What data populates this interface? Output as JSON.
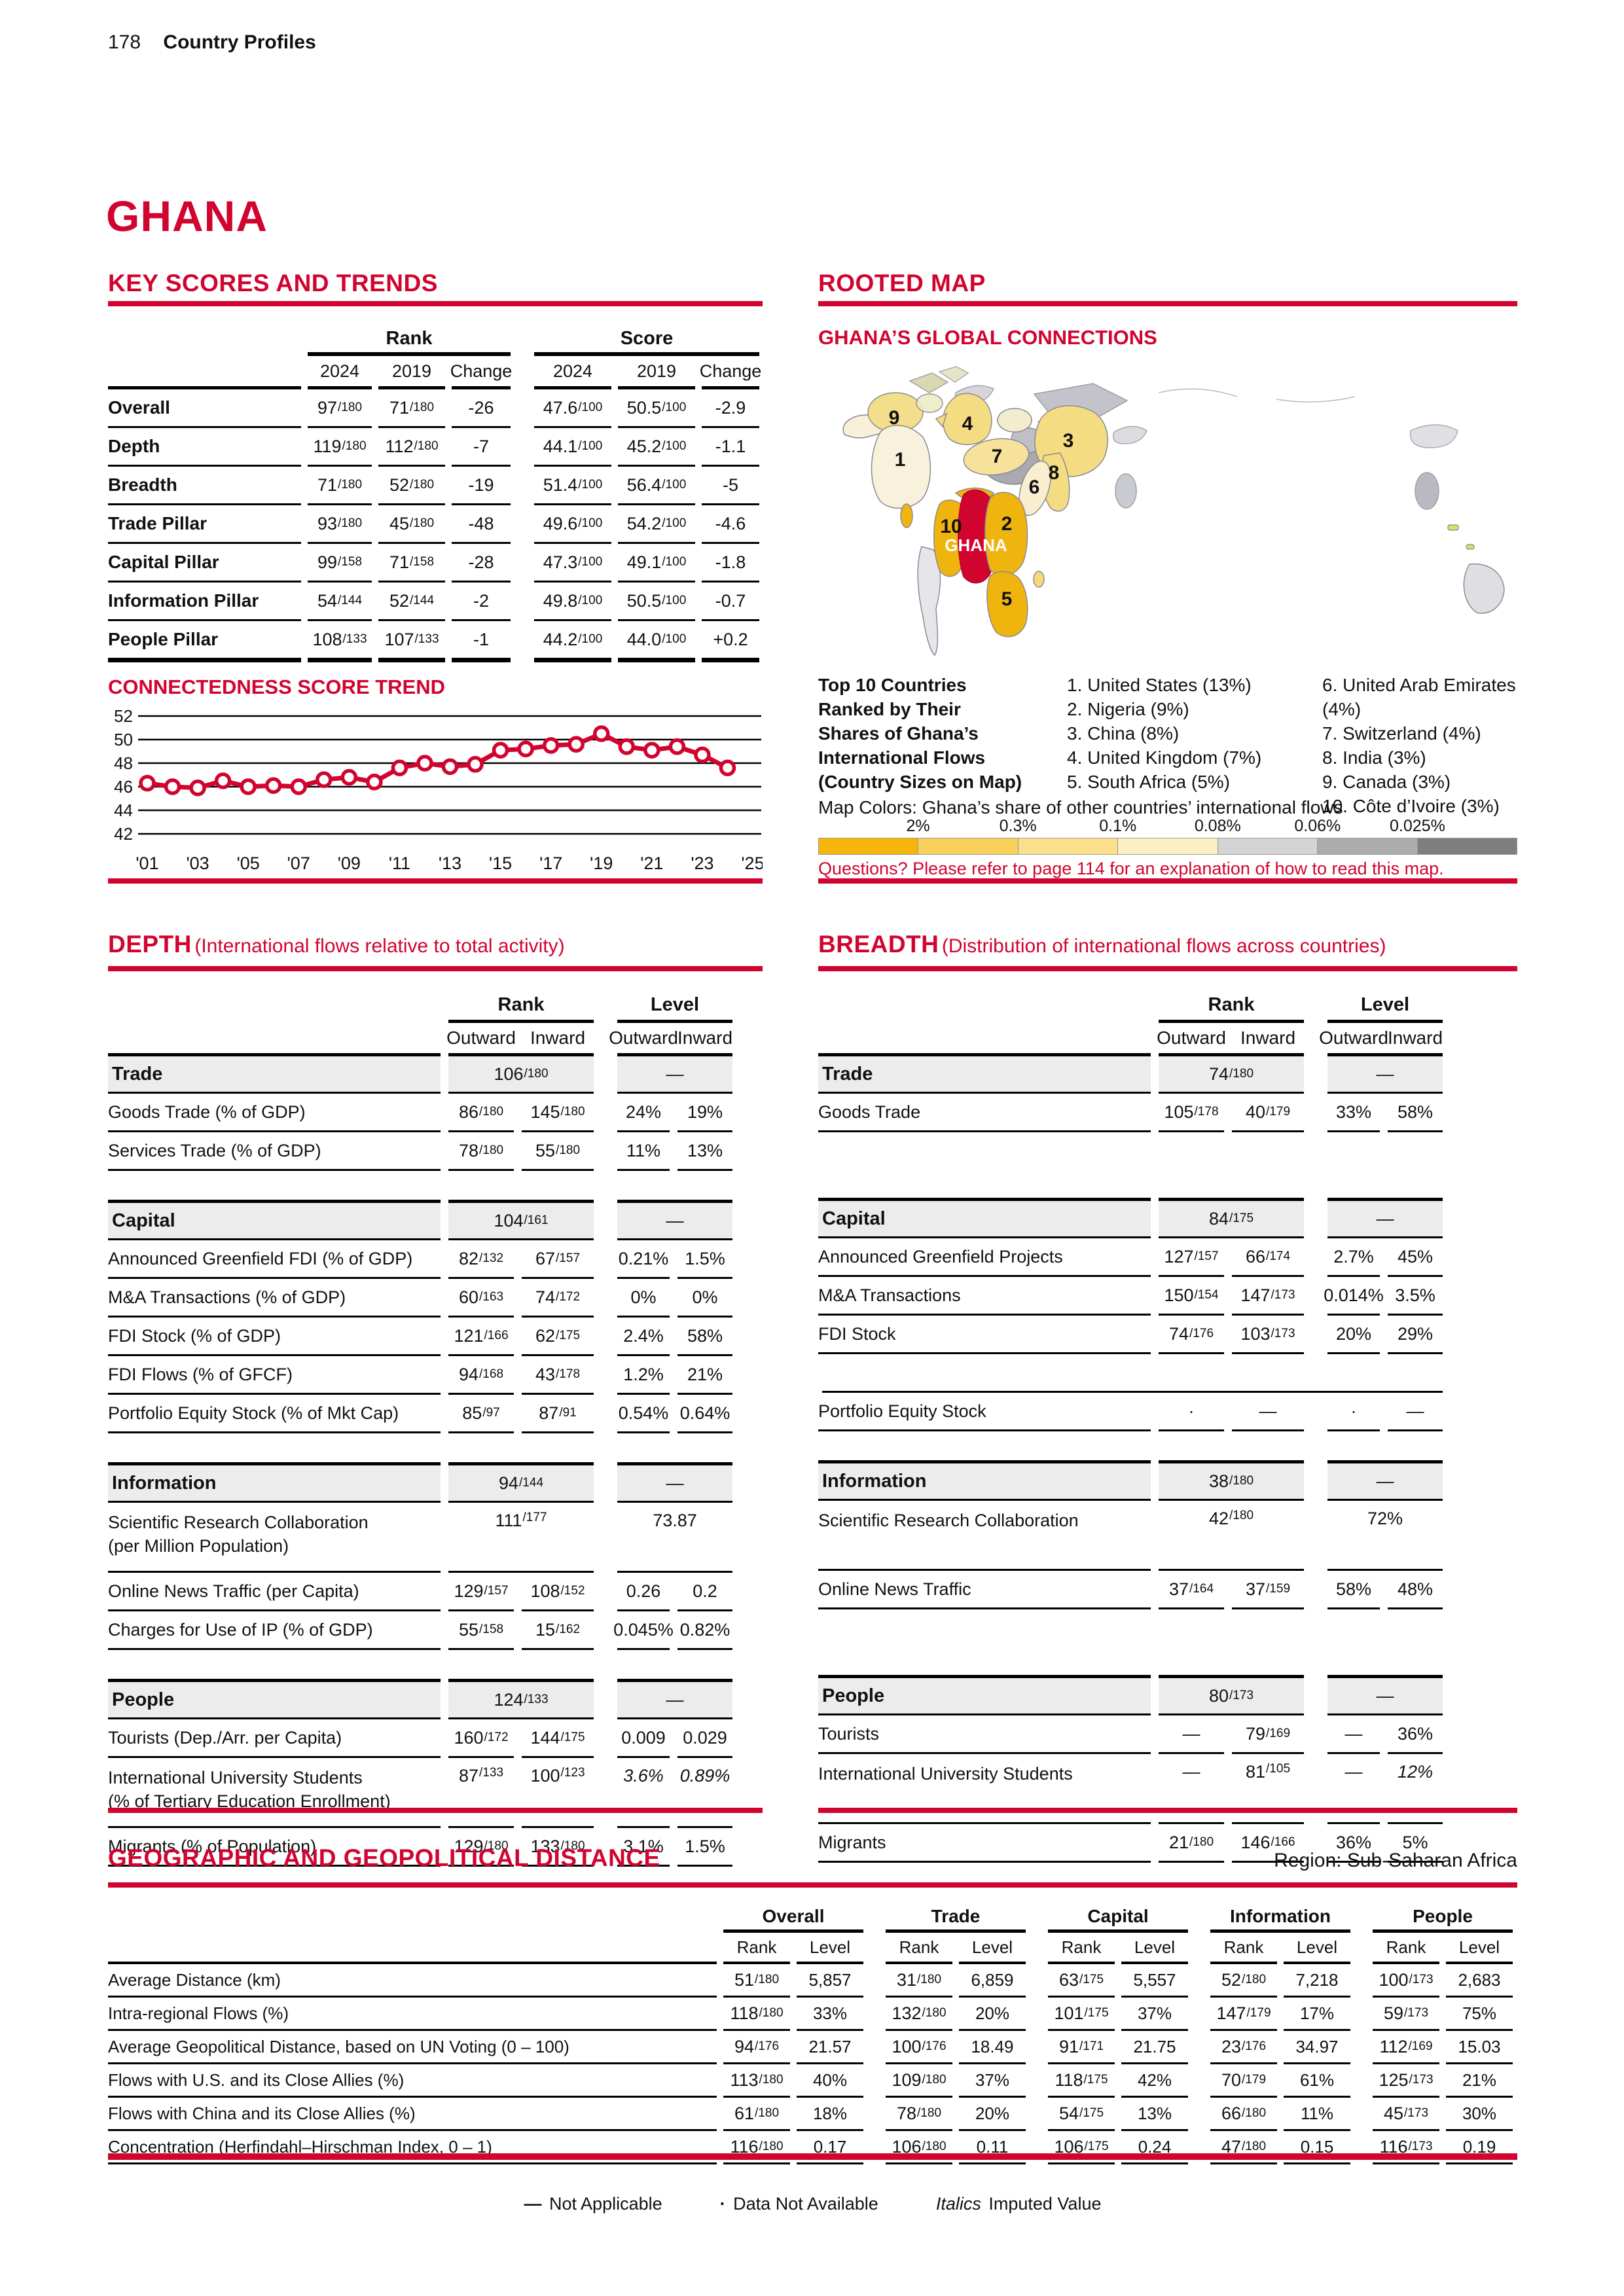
{
  "page": {
    "number": "178",
    "section": "Country Profiles",
    "country": "GHANA"
  },
  "colors": {
    "accent_red": "#D1042F",
    "gold": "#F0B40E",
    "pale_yellow": "#F4DC82",
    "cream": "#F8F0D8",
    "light_gray": "#D8D8DC",
    "medium_gray": "#ACACB4",
    "group_row_bg": "#ECECEC"
  },
  "key_scores": {
    "title": "KEY SCORES AND TRENDS",
    "col_groups": [
      "Rank",
      "Score"
    ],
    "col_headers": [
      "2024",
      "2019",
      "Change"
    ],
    "rows": [
      {
        "label": "Overall",
        "rank_2024": "97/180",
        "rank_2019": "71/180",
        "rank_change": "-26",
        "score_2024": "47.6/100",
        "score_2019": "50.5/100",
        "score_change": "-2.9"
      },
      {
        "label": "Depth",
        "rank_2024": "119/180",
        "rank_2019": "112/180",
        "rank_change": "-7",
        "score_2024": "44.1/100",
        "score_2019": "45.2/100",
        "score_change": "-1.1"
      },
      {
        "label": "Breadth",
        "rank_2024": "71/180",
        "rank_2019": "52/180",
        "rank_change": "-19",
        "score_2024": "51.4/100",
        "score_2019": "56.4/100",
        "score_change": "-5"
      },
      {
        "label": "Trade Pillar",
        "rank_2024": "93/180",
        "rank_2019": "45/180",
        "rank_change": "-48",
        "score_2024": "49.6/100",
        "score_2019": "54.2/100",
        "score_change": "-4.6"
      },
      {
        "label": "Capital Pillar",
        "rank_2024": "99/158",
        "rank_2019": "71/158",
        "rank_change": "-28",
        "score_2024": "47.3/100",
        "score_2019": "49.1/100",
        "score_change": "-1.8"
      },
      {
        "label": "Information Pillar",
        "rank_2024": "54/144",
        "rank_2019": "52/144",
        "rank_change": "-2",
        "score_2024": "49.8/100",
        "score_2019": "50.5/100",
        "score_change": "-0.7"
      },
      {
        "label": "People Pillar",
        "rank_2024": "108/133",
        "rank_2019": "107/133",
        "rank_change": "-1",
        "score_2024": "44.2/100",
        "score_2019": "44.0/100",
        "score_change": "+0.2"
      }
    ]
  },
  "chart_data": {
    "type": "line",
    "title": "CONNECTEDNESS SCORE TREND",
    "x": [
      2001,
      2002,
      2003,
      2004,
      2005,
      2006,
      2007,
      2008,
      2009,
      2010,
      2011,
      2012,
      2013,
      2014,
      2015,
      2016,
      2017,
      2018,
      2019,
      2020,
      2021,
      2022,
      2023,
      2024
    ],
    "values": [
      46.3,
      46.0,
      45.9,
      46.5,
      46.0,
      46.1,
      46.0,
      46.6,
      46.8,
      46.4,
      47.6,
      48.0,
      47.7,
      47.9,
      49.1,
      49.2,
      49.5,
      49.6,
      50.5,
      49.4,
      49.1,
      49.4,
      48.7,
      47.6
    ],
    "ylim": [
      42,
      52
    ],
    "yticks": [
      52,
      50,
      48,
      46,
      44,
      42
    ],
    "xtick_labels": [
      "'01",
      "'03",
      "'05",
      "'07",
      "'09",
      "'11",
      "'13",
      "'15",
      "'17",
      "'19",
      "'21",
      "'23",
      "'25"
    ],
    "grid": true,
    "series_color": "#D1042F"
  },
  "rooted_map": {
    "title": "ROOTED MAP",
    "subtitle": "GHANA’S GLOBAL CONNECTIONS",
    "legend_intro": [
      "Top 10 Countries",
      "Ranked by Their",
      "Shares of Ghana’s",
      "International Flows",
      "(Country Sizes on Map)"
    ],
    "top10_col1": [
      "1. United States (13%)",
      "2. Nigeria (9%)",
      "3. China (8%)",
      "4. United Kingdom (7%)",
      "5. South Africa (5%)"
    ],
    "top10_col2": [
      "6. United Arab Emirates (4%)",
      "7. Switzerland (4%)",
      "8. India (3%)",
      "9. Canada (3%)",
      "10. Côte d’Ivoire (3%)"
    ],
    "map_colors_label": "Map Colors: Ghana’s share of other countries’ international flows",
    "scale_labels": [
      "2%",
      "0.3%",
      "0.1%",
      "0.08%",
      "0.06%",
      "0.025%"
    ],
    "scale_colors": [
      "#F5B50A",
      "#F9D05C",
      "#FBDF8D",
      "#FDEFC4",
      "#D4D4D4",
      "#ACACAC",
      "#7F7F7F"
    ],
    "questions": "Questions? Please refer to page 114 for an explanation of how to read this map.",
    "ghana_label": "GHANA",
    "markers": [
      "1",
      "2",
      "3",
      "4",
      "5",
      "6",
      "7",
      "8",
      "9",
      "10"
    ]
  },
  "table_headers": {
    "rank": "Rank",
    "level": "Level",
    "outward": "Outward",
    "inward": "Inward"
  },
  "depth": {
    "title": "DEPTH",
    "subtitle": "(International flows relative to total activity)",
    "groups": [
      {
        "label": "Trade",
        "rank": "106/180",
        "level": "—",
        "rows": [
          {
            "label": "Goods Trade (% of GDP)",
            "rank_out": "86/180",
            "rank_in": "145/180",
            "lvl_out": "24%",
            "lvl_in": "19%"
          },
          {
            "label": "Services Trade (% of GDP)",
            "rank_out": "78/180",
            "rank_in": "55/180",
            "lvl_out": "11%",
            "lvl_in": "13%"
          }
        ]
      },
      {
        "label": "Capital",
        "rank": "104/161",
        "level": "—",
        "rows": [
          {
            "label": "Announced Greenfield FDI (% of GDP)",
            "rank_out": "82/132",
            "rank_in": "67/157",
            "lvl_out": "0.21%",
            "lvl_in": "1.5%"
          },
          {
            "label": "M&A Transactions (% of GDP)",
            "rank_out": "60/163",
            "rank_in": "74/172",
            "lvl_out": "0%",
            "lvl_in": "0%"
          },
          {
            "label": "FDI Stock (% of GDP)",
            "rank_out": "121/166",
            "rank_in": "62/175",
            "lvl_out": "2.4%",
            "lvl_in": "58%"
          },
          {
            "label": "FDI Flows (% of GFCF)",
            "rank_out": "94/168",
            "rank_in": "43/178",
            "lvl_out": "1.2%",
            "lvl_in": "21%"
          },
          {
            "label": "Portfolio Equity Stock (% of Mkt Cap)",
            "rank_out": "85/97",
            "rank_in": "87/91",
            "lvl_out": "0.54%",
            "lvl_in": "0.64%"
          }
        ]
      },
      {
        "label": "Information",
        "rank": "94/144",
        "level": "—",
        "rows": [
          {
            "label": "Scientific Research Collaboration",
            "label2": "(per Million Population)",
            "rank_span": "111/177",
            "lvl_span": "73.87"
          },
          {
            "label": "Online News Traffic (per Capita)",
            "rank_out": "129/157",
            "rank_in": "108/152",
            "lvl_out": "0.26",
            "lvl_in": "0.2"
          },
          {
            "label": "Charges for Use of IP (% of GDP)",
            "rank_out": "55/158",
            "rank_in": "15/162",
            "lvl_out": "0.045%",
            "lvl_in": "0.82%"
          }
        ]
      },
      {
        "label": "People",
        "rank": "124/133",
        "level": "—",
        "rows": [
          {
            "label": "Tourists (Dep./Arr. per Capita)",
            "rank_out": "160/172",
            "rank_in": "144/175",
            "lvl_out": "0.009",
            "lvl_in": "0.029"
          },
          {
            "label": "International University Students",
            "label2": "(% of Tertiary Education Enrollment)",
            "rank_out": "87/133",
            "rank_in": "100/123",
            "lvl_out": "3.6%",
            "lvl_in": "0.89%",
            "imputed": true
          },
          {
            "label": "Migrants (% of Population)",
            "rank_out": "129/180",
            "rank_in": "133/180",
            "lvl_out": "3.1%",
            "lvl_in": "1.5%"
          }
        ]
      }
    ]
  },
  "breadth": {
    "title": "BREADTH",
    "subtitle": "(Distribution of international flows across countries)",
    "groups": [
      {
        "label": "Trade",
        "rank": "74/180",
        "level": "—",
        "rows": [
          {
            "label": "Goods Trade",
            "rank_out": "105/178",
            "rank_in": "40/179",
            "lvl_out": "33%",
            "lvl_in": "58%"
          }
        ]
      },
      {
        "label": "Capital",
        "rank": "84/175",
        "level": "—",
        "rows": [
          {
            "label": "Announced Greenfield Projects",
            "rank_out": "127/157",
            "rank_in": "66/174",
            "lvl_out": "2.7%",
            "lvl_in": "45%"
          },
          {
            "label": "M&A Transactions",
            "rank_out": "150/154",
            "rank_in": "147/173",
            "lvl_out": "0.014%",
            "lvl_in": "3.5%"
          },
          {
            "label": "FDI Stock",
            "rank_out": "74/176",
            "rank_in": "103/173",
            "lvl_out": "20%",
            "lvl_in": "29%"
          },
          {
            "label": "Portfolio Equity Stock",
            "rank_out": "·",
            "rank_in": "—",
            "lvl_out": "·",
            "lvl_in": "—"
          }
        ]
      },
      {
        "label": "Information",
        "rank": "38/180",
        "level": "—",
        "rows": [
          {
            "label": "Scientific Research Collaboration",
            "rank_span": "42/180",
            "lvl_span": "72%"
          },
          {
            "label": "Online News Traffic",
            "rank_out": "37/164",
            "rank_in": "37/159",
            "lvl_out": "58%",
            "lvl_in": "48%"
          }
        ]
      },
      {
        "label": "People",
        "rank": "80/173",
        "level": "—",
        "rows": [
          {
            "label": "Tourists",
            "rank_out": "—",
            "rank_in": "79/169",
            "lvl_out": "—",
            "lvl_in": "36%"
          },
          {
            "label": "International University Students",
            "rank_out": "—",
            "rank_in": "81/105",
            "lvl_out": "—",
            "lvl_in": "12%",
            "imputed": true
          },
          {
            "label": "Migrants",
            "rank_out": "21/180",
            "rank_in": "146/166",
            "lvl_out": "36%",
            "lvl_in": "5%"
          }
        ]
      }
    ]
  },
  "geo": {
    "title": "GEOGRAPHIC AND GEOPOLITICAL DISTANCE",
    "region": "Region: Sub-Saharan Africa",
    "col_groups": [
      "Overall",
      "Trade",
      "Capital",
      "Information",
      "People"
    ],
    "sub_headers": {
      "rank": "Rank",
      "level": "Level"
    },
    "rows": [
      {
        "label": "Average Distance (km)",
        "values": [
          "51/180",
          "5,857",
          "31/180",
          "6,859",
          "63/175",
          "5,557",
          "52/180",
          "7,218",
          "100/173",
          "2,683"
        ]
      },
      {
        "label": "Intra-regional Flows (%)",
        "values": [
          "118/180",
          "33%",
          "132/180",
          "20%",
          "101/175",
          "37%",
          "147/179",
          "17%",
          "59/173",
          "75%"
        ]
      },
      {
        "label": "Average Geopolitical Distance, based on UN Voting (0 – 100)",
        "values": [
          "94/176",
          "21.57",
          "100/176",
          "18.49",
          "91/171",
          "21.75",
          "23/176",
          "34.97",
          "112/169",
          "15.03"
        ]
      },
      {
        "label": "Flows with U.S. and its Close Allies (%)",
        "values": [
          "113/180",
          "40%",
          "109/180",
          "37%",
          "118/175",
          "42%",
          "70/179",
          "61%",
          "125/173",
          "21%"
        ]
      },
      {
        "label": "Flows with China and its Close Allies (%)",
        "values": [
          "61/180",
          "18%",
          "78/180",
          "20%",
          "54/175",
          "13%",
          "66/180",
          "11%",
          "45/173",
          "30%"
        ]
      },
      {
        "label": "Concentration (Herfindahl–Hirschman Index, 0 – 1)",
        "values": [
          "116/180",
          "0.17",
          "106/180",
          "0.11",
          "106/175",
          "0.24",
          "47/180",
          "0.15",
          "116/173",
          "0.19"
        ]
      }
    ]
  },
  "footer": {
    "na_sym": "—",
    "na_label": "Not Applicable",
    "dna_sym": "·",
    "dna_label": "Data Not Available",
    "imputed_sym": "Italics",
    "imputed_label": "Imputed Value"
  }
}
